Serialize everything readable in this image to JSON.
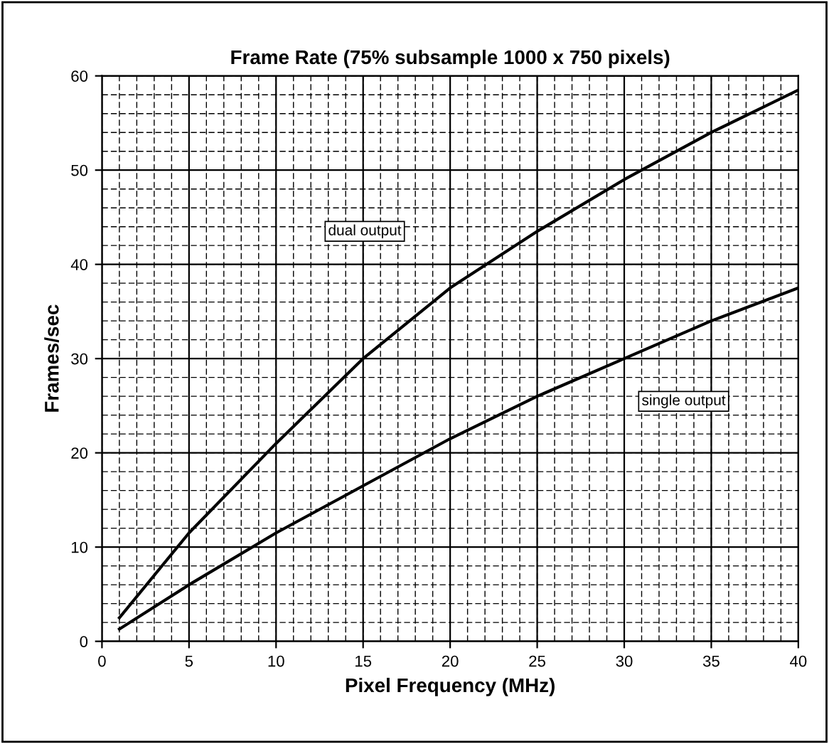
{
  "chart_data": {
    "type": "line",
    "title": "Frame Rate (75% subsample 1000 x 750 pixels)",
    "xlabel": "Pixel Frequency (MHz)",
    "ylabel": "Frames/sec",
    "x": [
      1,
      5,
      10,
      15,
      20,
      25,
      30,
      35,
      40
    ],
    "series": [
      {
        "name": "dual output",
        "color": "#000000",
        "values": [
          2.5,
          11.5,
          21,
          30,
          37.5,
          43.5,
          49,
          54,
          58.5
        ]
      },
      {
        "name": "single output",
        "color": "#000000",
        "values": [
          1.3,
          6,
          11.5,
          16.5,
          21.5,
          26,
          30,
          34,
          37.5
        ]
      }
    ],
    "xlim": [
      0,
      40
    ],
    "ylim": [
      0,
      60
    ],
    "xticks": [
      0,
      5,
      10,
      15,
      20,
      25,
      30,
      35,
      40
    ],
    "yticks": [
      0,
      10,
      20,
      30,
      40,
      50,
      60
    ],
    "grid": true,
    "marker": "none",
    "line_style": "solid"
  }
}
